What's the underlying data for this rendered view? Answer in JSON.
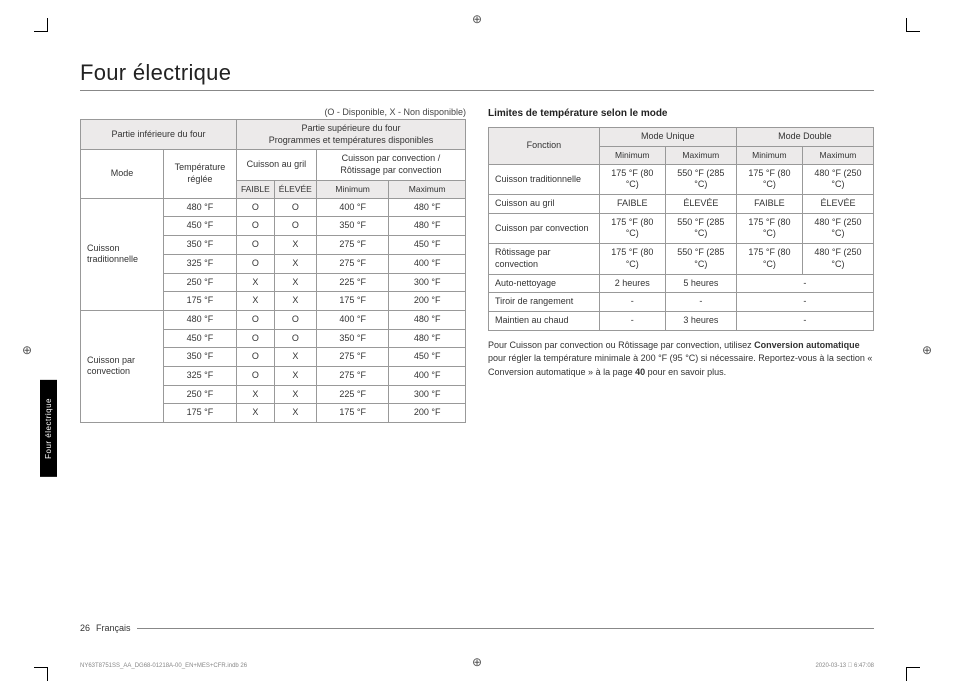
{
  "title": "Four électrique",
  "sideTab": "Four électrique",
  "legend": "(O - Disponible, X - Non disponible)",
  "table1": {
    "h_lower": "Partie inférieure du four",
    "h_upper": "Partie supérieure du four",
    "h_upper_sub": "Programmes et températures disponibles",
    "h_mode": "Mode",
    "h_temp": "Température réglée",
    "h_gril": "Cuisson au gril",
    "h_conv": "Cuisson par convection / Rôtissage par convection",
    "sub_faible": "FAIBLE",
    "sub_elevee": "ÉLEVÉE",
    "sub_min": "Minimum",
    "sub_max": "Maximum",
    "groups": [
      {
        "mode": "Cuisson traditionnelle",
        "rows": [
          {
            "t": "480 °F",
            "f": "O",
            "e": "O",
            "min": "400 °F",
            "max": "480 °F"
          },
          {
            "t": "450 °F",
            "f": "O",
            "e": "O",
            "min": "350 °F",
            "max": "480 °F"
          },
          {
            "t": "350 °F",
            "f": "O",
            "e": "X",
            "min": "275 °F",
            "max": "450 °F"
          },
          {
            "t": "325 °F",
            "f": "O",
            "e": "X",
            "min": "275 °F",
            "max": "400 °F"
          },
          {
            "t": "250 °F",
            "f": "X",
            "e": "X",
            "min": "225 °F",
            "max": "300 °F"
          },
          {
            "t": "175 °F",
            "f": "X",
            "e": "X",
            "min": "175 °F",
            "max": "200 °F"
          }
        ]
      },
      {
        "mode": "Cuisson par convection",
        "rows": [
          {
            "t": "480 °F",
            "f": "O",
            "e": "O",
            "min": "400 °F",
            "max": "480 °F"
          },
          {
            "t": "450 °F",
            "f": "O",
            "e": "O",
            "min": "350 °F",
            "max": "480 °F"
          },
          {
            "t": "350 °F",
            "f": "O",
            "e": "X",
            "min": "275 °F",
            "max": "450 °F"
          },
          {
            "t": "325 °F",
            "f": "O",
            "e": "X",
            "min": "275 °F",
            "max": "400 °F"
          },
          {
            "t": "250 °F",
            "f": "X",
            "e": "X",
            "min": "225 °F",
            "max": "300 °F"
          },
          {
            "t": "175 °F",
            "f": "X",
            "e": "X",
            "min": "175 °F",
            "max": "200 °F"
          }
        ]
      }
    ]
  },
  "section2Title": "Limites de température selon le mode",
  "table2": {
    "h_fonction": "Fonction",
    "h_unique": "Mode Unique",
    "h_double": "Mode Double",
    "sub_min": "Minimum",
    "sub_max": "Maximum",
    "rows": [
      {
        "f": "Cuisson traditionnelle",
        "u_min": "175 °F (80 °C)",
        "u_max": "550 °F (285 °C)",
        "d_min": "175 °F (80 °C)",
        "d_max": "480 °F (250 °C)"
      },
      {
        "f": "Cuisson au gril",
        "u_min": "FAIBLE",
        "u_max": "ÉLEVÉE",
        "d_min": "FAIBLE",
        "d_max": "ÉLEVÉE"
      },
      {
        "f": "Cuisson par convection",
        "u_min": "175 °F (80 °C)",
        "u_max": "550 °F (285 °C)",
        "d_min": "175 °F (80 °C)",
        "d_max": "480 °F (250 °C)"
      },
      {
        "f": "Rôtissage par convection",
        "u_min": "175 °F (80 °C)",
        "u_max": "550 °F (285 °C)",
        "d_min": "175 °F (80 °C)",
        "d_max": "480 °F (250 °C)"
      },
      {
        "f": "Auto-nettoyage",
        "u_min": "2 heures",
        "u_max": "5 heures",
        "d_span": "-"
      },
      {
        "f": "Tiroir de rangement",
        "u_min": "-",
        "u_max": "-",
        "d_span": "-"
      },
      {
        "f": "Maintien au chaud",
        "u_min": "-",
        "u_max": "3 heures",
        "d_span": "-"
      }
    ]
  },
  "note_pre": "Pour Cuisson par convection ou Rôtissage par convection, utilisez ",
  "note_bold1": "Conversion automatique",
  "note_mid": " pour régler la température minimale à 200 °F (95 °C) si nécessaire. Reportez-vous à la section « Conversion automatique » à la page ",
  "note_bold2": "40",
  "note_post": " pour en savoir plus.",
  "pageNum": "26",
  "pageLang": "Français",
  "footFile": "NY63T8751SS_AA_DG68-01218A-00_EN+MES+CFR.indb   26",
  "footDate": "2020-03-13   􀀀 6:47:08"
}
